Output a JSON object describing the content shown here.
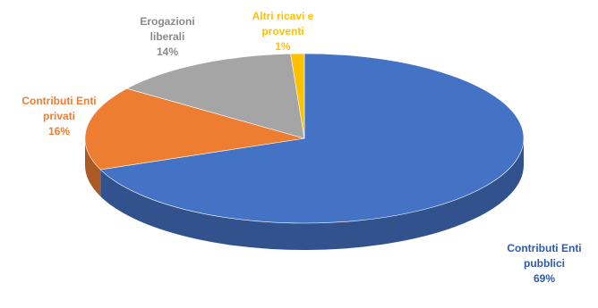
{
  "chart_data": {
    "type": "pie",
    "title": "",
    "slices": [
      {
        "label_lines": [
          "Contributi Enti",
          "pubblici"
        ],
        "pct_text": "69%",
        "value": 69,
        "color": "#4472C4",
        "text_color": "#2F5AA8"
      },
      {
        "label_lines": [
          "Contributi Enti",
          "privati"
        ],
        "pct_text": "16%",
        "value": 16,
        "color": "#ED7D31",
        "text_color": "#ED7D31"
      },
      {
        "label_lines": [
          "Erogazioni",
          "liberali"
        ],
        "pct_text": "14%",
        "value": 14,
        "color": "#A5A5A5",
        "text_color": "#8A8A8A"
      },
      {
        "label_lines": [
          "Altri ricavi e",
          "proventi"
        ],
        "pct_text": "1%",
        "value": 1,
        "color": "#FFC000",
        "text_color": "#FFC000"
      }
    ],
    "style": "3d-pie",
    "legend": "none"
  }
}
